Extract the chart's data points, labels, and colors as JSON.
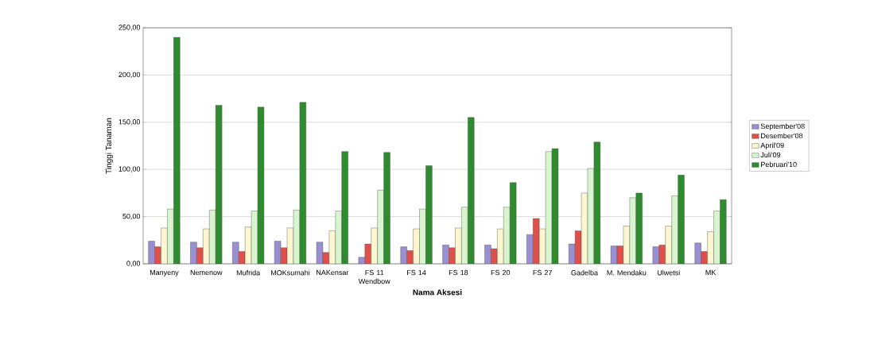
{
  "chart_data": {
    "type": "bar",
    "xlabel": "Nama Aksesi",
    "ylabel": "Tinggi Tanaman",
    "categories": [
      "Manyeny",
      "Nemenow",
      "Mufrida",
      "MOKsumahi",
      "NAKensar",
      "FS 11 Wendbow",
      "FS 14",
      "FS 18",
      "FS 20",
      "FS 27",
      "Gadelba",
      "M. Mendaku",
      "Ulwetsi",
      "MK"
    ],
    "series": [
      {
        "name": "September'08",
        "color": "#9a8fd0",
        "values": [
          24,
          23,
          23,
          24,
          23,
          7,
          18,
          20,
          20,
          31,
          21,
          19,
          18,
          22
        ]
      },
      {
        "name": "Desember'08",
        "color": "#e0504a",
        "values": [
          18,
          17,
          13,
          17,
          12,
          21,
          14,
          17,
          16,
          48,
          35,
          19,
          20,
          13
        ]
      },
      {
        "name": "April'09",
        "color": "#fdf6cf",
        "values": [
          38,
          37,
          39,
          38,
          35,
          38,
          37,
          38,
          37,
          37,
          75,
          40,
          40,
          34
        ]
      },
      {
        "name": "Juli'09",
        "color": "#d8f5d0",
        "values": [
          58,
          57,
          56,
          57,
          56,
          78,
          58,
          60,
          60,
          119,
          101,
          70,
          72,
          56
        ]
      },
      {
        "name": "Pebruari'10",
        "color": "#2e8b2e",
        "values": [
          240,
          168,
          166,
          171,
          119,
          118,
          104,
          155,
          86,
          122,
          129,
          75,
          94,
          68
        ]
      }
    ],
    "ylim": [
      0,
      250
    ],
    "yticks": [
      {
        "value": 0,
        "label": "0,00"
      },
      {
        "value": 50,
        "label": "50,00"
      },
      {
        "value": 100,
        "label": "100,00"
      },
      {
        "value": 150,
        "label": "150,00"
      },
      {
        "value": 200,
        "label": "200,00"
      },
      {
        "value": 250,
        "label": "250,00"
      }
    ],
    "grid": "y",
    "legend": "right"
  }
}
